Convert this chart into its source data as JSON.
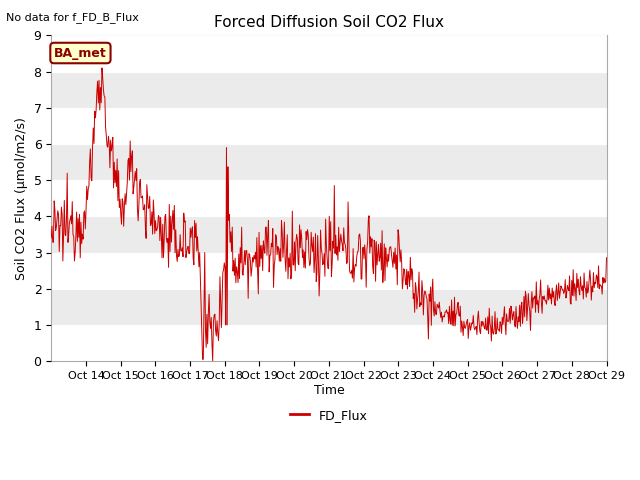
{
  "title": "Forced Diffusion Soil CO2 Flux",
  "top_left_text": "No data for f_FD_B_Flux",
  "ylabel": "Soil CO2 Flux (μmol/m2/s)",
  "xlabel": "Time",
  "ylim": [
    0.0,
    9.0
  ],
  "yticks": [
    0.0,
    1.0,
    2.0,
    3.0,
    4.0,
    5.0,
    6.0,
    7.0,
    8.0,
    9.0
  ],
  "xtick_labels": [
    "Oct 14",
    "Oct 15",
    "Oct 16",
    "Oct 17",
    "Oct 18",
    "Oct 19",
    "Oct 20",
    "Oct 21",
    "Oct 22",
    "Oct 23",
    "Oct 24",
    "Oct 25",
    "Oct 26",
    "Oct 27",
    "Oct 28",
    "Oct 29"
  ],
  "line_color": "#cc0000",
  "legend_label": "FD_Flux",
  "box_label": "BA_met",
  "box_facecolor": "#ffffcc",
  "box_edgecolor": "#8b0000",
  "plot_bg_color": "#ebebeb",
  "grid_color": "#ffffff",
  "seed": 12345
}
